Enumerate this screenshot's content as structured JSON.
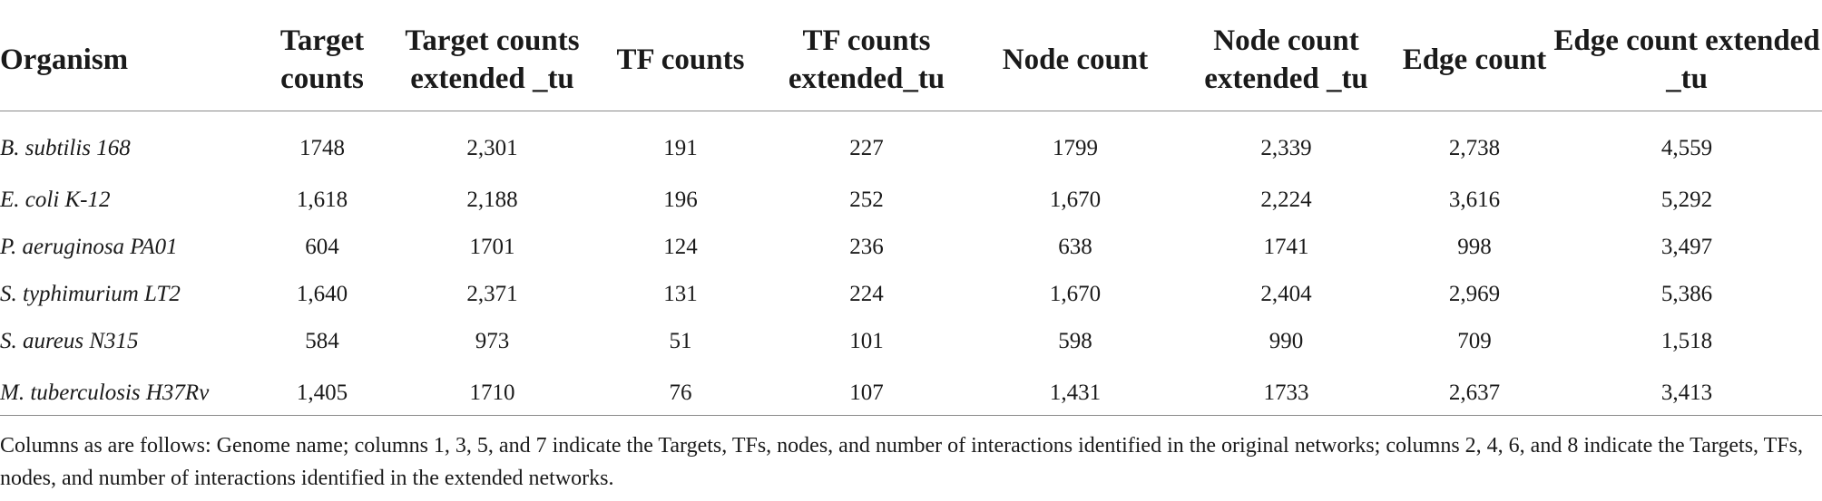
{
  "table": {
    "headers": [
      "Organism",
      "Target counts",
      "Target counts extended _tu",
      "TF counts",
      "TF counts extended_tu",
      "Node count",
      "Node count extended _tu",
      "Edge count",
      "Edge count extended _tu"
    ],
    "rows": [
      [
        "B. subtilis 168",
        "1748",
        "2,301",
        "191",
        "227",
        "1799",
        "2,339",
        "2,738",
        "4,559"
      ],
      [
        "E. coli K-12",
        "1,618",
        "2,188",
        "196",
        "252",
        "1,670",
        "2,224",
        "3,616",
        "5,292"
      ],
      [
        "P. aeruginosa PA01",
        "604",
        "1701",
        "124",
        "236",
        "638",
        "1741",
        "998",
        "3,497"
      ],
      [
        "S. typhimurium LT2",
        "1,640",
        "2,371",
        "131",
        "224",
        "1,670",
        "2,404",
        "2,969",
        "5,386"
      ],
      [
        "S. aureus N315",
        "584",
        "973",
        "51",
        "101",
        "598",
        "990",
        "709",
        "1,518"
      ],
      [
        "M. tuberculosis H37Rv",
        "1,405",
        "1710",
        "76",
        "107",
        "1,431",
        "1733",
        "2,637",
        "3,413"
      ]
    ]
  },
  "footnote": "Columns as are follows: Genome name; columns 1, 3, 5, and 7 indicate the Targets, TFs, nodes, and number of interactions identified in the original networks; columns 2, 4, 6, and 8 indicate the Targets, TFs, nodes, and number of interactions identified in the extended networks."
}
